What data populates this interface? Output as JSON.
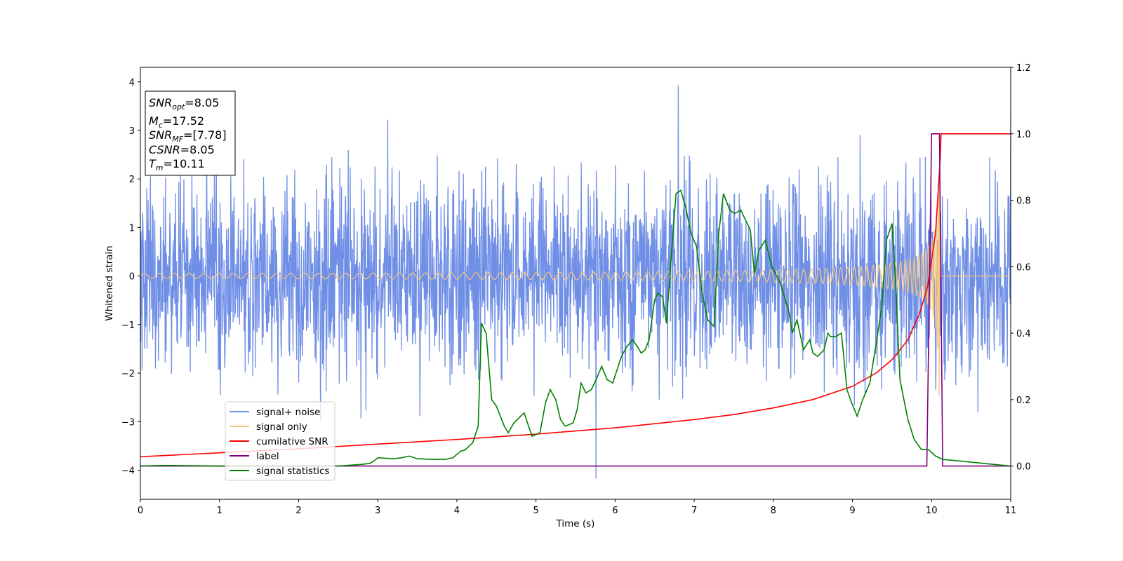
{
  "chart_data": {
    "type": "line",
    "xlabel": "Time (s)",
    "ylabel": "Whitened strain",
    "xlim": [
      0,
      11
    ],
    "ylim_left": [
      -4.6,
      4.3
    ],
    "ylim_right": [
      -0.1,
      1.2
    ],
    "x_ticks": [
      "0",
      "1",
      "2",
      "3",
      "4",
      "5",
      "6",
      "7",
      "8",
      "9",
      "10",
      "11"
    ],
    "y_ticks_left": [
      "4",
      "3",
      "2",
      "1",
      "0",
      "−1",
      "−2",
      "−3",
      "−4"
    ],
    "y_ticks_right": [
      "1.2",
      "1.0",
      "0.8",
      "0.6",
      "0.4",
      "0.2",
      "0.0"
    ],
    "info_box": {
      "lines": [
        {
          "sym": "SNR",
          "sub": "opt",
          "rest": "=8.05"
        },
        {
          "sym": "M",
          "sub": "c",
          "rest": "=17.52"
        },
        {
          "sym": "SNR",
          "sub": "MF",
          "rest": "=[7.78]"
        },
        {
          "sym": "CSNR",
          "sub": "",
          "rest": "=8.05"
        },
        {
          "sym": "T",
          "sub": "m",
          "rest": "=10.11"
        }
      ]
    },
    "legend": {
      "position": "lower-left",
      "entries": [
        {
          "label": "signal+ noise",
          "color": "#6f8ee6"
        },
        {
          "label": "signal only",
          "color": "#f5c77e"
        },
        {
          "label": "cumilative SNR",
          "color": "#ff0000"
        },
        {
          "label": "label",
          "color": "#800080"
        },
        {
          "label": "signal statistics",
          "color": "#008000"
        }
      ]
    },
    "series": [
      {
        "name": "signal+ noise",
        "axis": "left",
        "color": "#6f8ee6",
        "kind": "noise",
        "x_range": [
          0,
          11
        ],
        "envelope": [
          -2.5,
          2.5
        ],
        "min": -4.17,
        "max": 3.93
      },
      {
        "name": "signal only",
        "axis": "left",
        "color": "#f5c77e",
        "kind": "chirp",
        "x_range": [
          0,
          10.12
        ],
        "amplitude_start": 0.05,
        "amplitude_max": 2.5,
        "merger_time": 10.11
      },
      {
        "name": "cumilative SNR",
        "axis": "right",
        "color": "#ff0000",
        "x": [
          0,
          1,
          2,
          3,
          4,
          5,
          6,
          7,
          7.5,
          8,
          8.5,
          9,
          9.3,
          9.5,
          9.7,
          9.85,
          9.95,
          10.05,
          10.11,
          10.12,
          11
        ],
        "y": [
          0.028,
          0.04,
          0.052,
          0.066,
          0.08,
          0.096,
          0.115,
          0.14,
          0.155,
          0.175,
          0.2,
          0.24,
          0.28,
          0.32,
          0.38,
          0.46,
          0.54,
          0.7,
          0.93,
          1.0,
          1.0
        ]
      },
      {
        "name": "label",
        "axis": "right",
        "color": "#800080",
        "x": [
          0,
          9.94,
          10.0,
          10.1,
          10.14,
          11
        ],
        "y": [
          0,
          0,
          1.0,
          1.0,
          0,
          0
        ]
      },
      {
        "name": "signal statistics",
        "axis": "right",
        "color": "#008000",
        "x": [
          0,
          0.3,
          1.0,
          2.0,
          2.5,
          2.8,
          2.9,
          2.95,
          3.0,
          3.2,
          3.3,
          3.4,
          3.5,
          3.7,
          3.85,
          3.95,
          4.05,
          4.1,
          4.2,
          4.27,
          4.31,
          4.37,
          4.44,
          4.5,
          4.6,
          4.65,
          4.72,
          4.85,
          4.95,
          5.05,
          5.12,
          5.18,
          5.25,
          5.31,
          5.37,
          5.47,
          5.52,
          5.57,
          5.63,
          5.7,
          5.76,
          5.83,
          5.9,
          5.97,
          6.08,
          6.15,
          6.22,
          6.28,
          6.33,
          6.38,
          6.43,
          6.5,
          6.54,
          6.6,
          6.65,
          6.7,
          6.77,
          6.83,
          6.89,
          6.96,
          7.03,
          7.1,
          7.17,
          7.25,
          7.31,
          7.37,
          7.45,
          7.51,
          7.59,
          7.71,
          7.76,
          7.82,
          7.9,
          7.98,
          8.09,
          8.2,
          8.24,
          8.3,
          8.38,
          8.46,
          8.5,
          8.56,
          8.64,
          8.69,
          8.72,
          8.79,
          8.86,
          8.93,
          8.99,
          9.06,
          9.13,
          9.22,
          9.3,
          9.37,
          9.43,
          9.5,
          9.55,
          9.6,
          9.7,
          9.78,
          9.87,
          9.96,
          10.05,
          10.14,
          11
        ],
        "y": [
          0.0,
          0.002,
          0.0,
          0.0,
          0.0,
          0.005,
          0.008,
          0.015,
          0.025,
          0.022,
          0.025,
          0.03,
          0.022,
          0.02,
          0.02,
          0.025,
          0.045,
          0.048,
          0.07,
          0.12,
          0.43,
          0.4,
          0.2,
          0.18,
          0.12,
          0.1,
          0.13,
          0.16,
          0.09,
          0.1,
          0.19,
          0.23,
          0.2,
          0.14,
          0.12,
          0.13,
          0.17,
          0.25,
          0.22,
          0.23,
          0.26,
          0.3,
          0.26,
          0.25,
          0.33,
          0.36,
          0.38,
          0.36,
          0.34,
          0.35,
          0.38,
          0.5,
          0.52,
          0.51,
          0.43,
          0.6,
          0.82,
          0.83,
          0.78,
          0.7,
          0.66,
          0.52,
          0.44,
          0.42,
          0.7,
          0.82,
          0.77,
          0.76,
          0.77,
          0.71,
          0.58,
          0.65,
          0.68,
          0.6,
          0.55,
          0.46,
          0.4,
          0.44,
          0.35,
          0.38,
          0.34,
          0.33,
          0.35,
          0.4,
          0.39,
          0.39,
          0.4,
          0.23,
          0.19,
          0.15,
          0.2,
          0.25,
          0.37,
          0.48,
          0.68,
          0.73,
          0.53,
          0.26,
          0.14,
          0.08,
          0.05,
          0.05,
          0.03,
          0.02,
          0.0
        ]
      }
    ]
  }
}
